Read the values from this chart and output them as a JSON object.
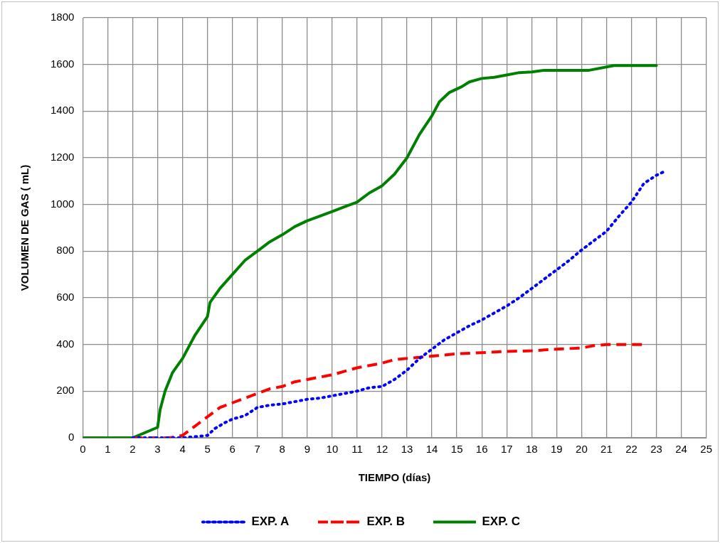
{
  "chart_data": {
    "type": "line",
    "xlabel": "TIEMPO (días)",
    "ylabel": "VOLUMEN DE GAS ( mL)",
    "xlim": [
      0,
      25
    ],
    "xticks": [
      0,
      1,
      2,
      3,
      4,
      5,
      6,
      7,
      8,
      9,
      10,
      11,
      12,
      13,
      14,
      15,
      16,
      17,
      18,
      19,
      20,
      21,
      22,
      23,
      24,
      25
    ],
    "ylim": [
      0,
      1800
    ],
    "yticks": [
      0,
      200,
      400,
      600,
      800,
      1000,
      1200,
      1400,
      1600,
      1800
    ],
    "grid": true,
    "legend": "bottom",
    "marker": "none",
    "series": [
      {
        "name": "EXP. A",
        "color": "#0000ff",
        "line_style": "dotted",
        "x": [
          2,
          3,
          4,
          4.5,
          5,
          5.3,
          5.7,
          6,
          6.5,
          7,
          7.5,
          8,
          8.5,
          9,
          9.5,
          10,
          10.5,
          11,
          11.5,
          12,
          12.5,
          13,
          13.5,
          14,
          14.5,
          15,
          15.5,
          16,
          16.5,
          17,
          17.5,
          18,
          18.5,
          19,
          19.5,
          20,
          20.5,
          21,
          21.5,
          22,
          22.5,
          23,
          23.4
        ],
        "values": [
          0,
          0,
          0,
          5,
          10,
          40,
          65,
          80,
          95,
          130,
          140,
          145,
          155,
          165,
          170,
          180,
          190,
          200,
          215,
          220,
          250,
          290,
          340,
          380,
          420,
          450,
          480,
          505,
          535,
          565,
          600,
          640,
          680,
          720,
          760,
          805,
          845,
          885,
          950,
          1010,
          1090,
          1125,
          1145
        ]
      },
      {
        "name": "EXP. B",
        "color": "#ff0000",
        "line_style": "dashed",
        "x": [
          2,
          3.5,
          4,
          4.5,
          5,
          5.5,
          6,
          6.5,
          7,
          7.5,
          8,
          8.5,
          9,
          9.5,
          10,
          10.5,
          11,
          11.5,
          12,
          12.5,
          13,
          13.5,
          14,
          14.5,
          15,
          16,
          17,
          18,
          19,
          20,
          20.5,
          21,
          22,
          22.5
        ],
        "values": [
          0,
          0,
          10,
          50,
          90,
          130,
          150,
          170,
          190,
          210,
          220,
          240,
          250,
          260,
          270,
          285,
          300,
          310,
          320,
          335,
          340,
          345,
          350,
          355,
          360,
          365,
          370,
          373,
          380,
          385,
          395,
          400,
          400,
          400
        ]
      },
      {
        "name": "EXP. C",
        "color": "#008000",
        "line_style": "solid",
        "x": [
          0,
          2,
          3,
          3.1,
          3.3,
          3.6,
          4,
          4.5,
          5,
          5.1,
          5.5,
          6,
          6.5,
          7,
          7.5,
          8,
          8.5,
          9,
          9.5,
          10,
          10.5,
          11,
          11.5,
          12,
          12.5,
          13,
          13.5,
          14,
          14.3,
          14.7,
          15.2,
          15.5,
          16,
          16.5,
          17,
          17.5,
          18,
          18.5,
          19,
          20,
          20.3,
          21.3,
          23
        ],
        "values": [
          0,
          0,
          45,
          120,
          200,
          280,
          340,
          440,
          520,
          580,
          640,
          700,
          760,
          800,
          840,
          870,
          905,
          930,
          950,
          970,
          990,
          1010,
          1050,
          1080,
          1130,
          1200,
          1300,
          1380,
          1440,
          1480,
          1505,
          1525,
          1540,
          1545,
          1555,
          1565,
          1568,
          1575,
          1575,
          1575,
          1575,
          1595,
          1595
        ]
      }
    ]
  }
}
